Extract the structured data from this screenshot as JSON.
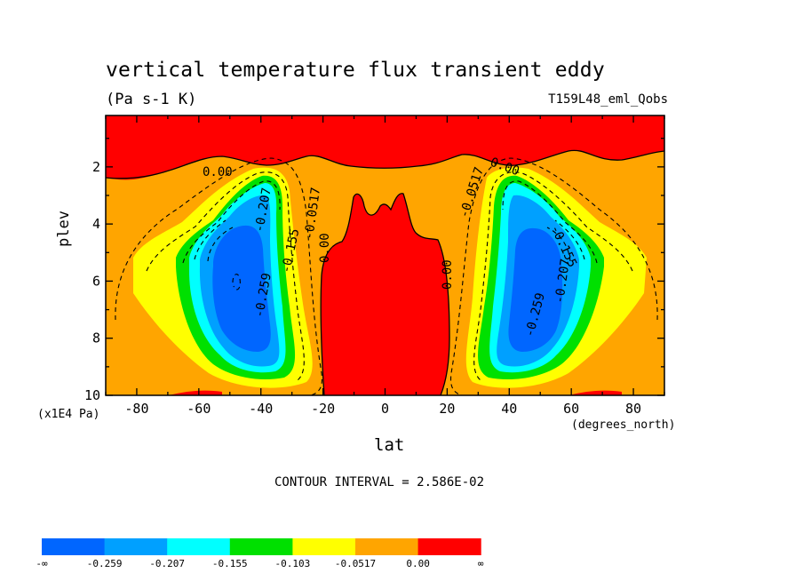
{
  "chart_data": {
    "type": "filled-contour",
    "title": "vertical temperature flux transient eddy",
    "units": "(Pa s-1 K)",
    "run_id": "T159L48_eml_Qobs",
    "xlabel": "lat",
    "x_units": "(degrees_north)",
    "ylabel": "plev",
    "y_units": "(x1E4 Pa)",
    "xlim": [
      -90,
      90
    ],
    "ylim": [
      10,
      0.2
    ],
    "x_ticks": [
      "-80",
      "-60",
      "-40",
      "-20",
      "0",
      "20",
      "40",
      "60",
      "80"
    ],
    "y_ticks": [
      "2",
      "4",
      "6",
      "8",
      "10"
    ],
    "contour_interval_text": "CONTOUR INTERVAL = 2.586E-02",
    "contour_labels": [
      "0.00",
      "0.00",
      "0.00",
      "0.00",
      "-0.259",
      "-0.207",
      "-0.155",
      "-0.0517",
      "-0.259",
      "-0.207",
      "-0.155",
      "-0.0517"
    ],
    "colorbar": {
      "labels": [
        "-∞",
        "-0.259",
        "-0.207",
        "-0.155",
        "-0.103",
        "-0.0517",
        "0.00",
        "∞"
      ],
      "colors": [
        "#0066ff",
        "#00a0ff",
        "#00ffff",
        "#00e000",
        "#ffff00",
        "#ffa500",
        "#ff0000"
      ]
    },
    "grid": false
  }
}
